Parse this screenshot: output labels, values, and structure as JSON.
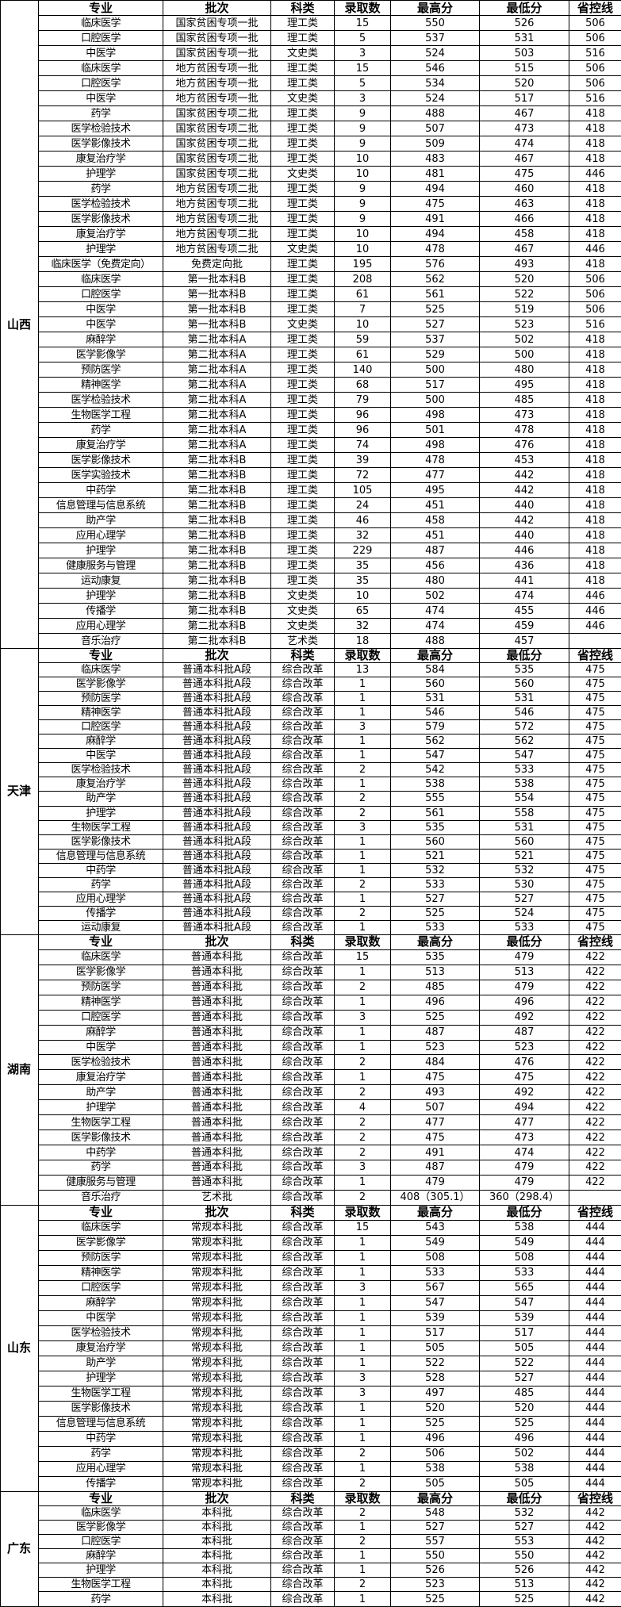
{
  "columns": [
    "专业",
    "批次",
    "科类",
    "录取数",
    "最高分",
    "最低分",
    "省控线"
  ],
  "provinces": [
    {
      "name": "山西",
      "rows": [
        [
          "临床医学",
          "国家贫困专项一批",
          "理工类",
          "15",
          "550",
          "526",
          "506"
        ],
        [
          "口腔医学",
          "国家贫困专项一批",
          "理工类",
          "5",
          "537",
          "531",
          "506"
        ],
        [
          "中医学",
          "国家贫困专项一批",
          "文史类",
          "3",
          "524",
          "503",
          "516"
        ],
        [
          "临床医学",
          "地方贫困专项一批",
          "理工类",
          "15",
          "546",
          "515",
          "506"
        ],
        [
          "口腔医学",
          "地方贫困专项一批",
          "理工类",
          "5",
          "534",
          "520",
          "506"
        ],
        [
          "中医学",
          "地方贫困专项一批",
          "文史类",
          "3",
          "524",
          "517",
          "516"
        ],
        [
          "药学",
          "国家贫困专项二批",
          "理工类",
          "9",
          "488",
          "467",
          "418"
        ],
        [
          "医学检验技术",
          "国家贫困专项二批",
          "理工类",
          "9",
          "507",
          "473",
          "418"
        ],
        [
          "医学影像技术",
          "国家贫困专项二批",
          "理工类",
          "9",
          "509",
          "474",
          "418"
        ],
        [
          "康复治疗学",
          "国家贫困专项二批",
          "理工类",
          "10",
          "483",
          "467",
          "418"
        ],
        [
          "护理学",
          "国家贫困专项二批",
          "文史类",
          "10",
          "481",
          "475",
          "446"
        ],
        [
          "药学",
          "地方贫困专项二批",
          "理工类",
          "9",
          "494",
          "460",
          "418"
        ],
        [
          "医学检验技术",
          "地方贫困专项二批",
          "理工类",
          "9",
          "475",
          "463",
          "418"
        ],
        [
          "医学影像技术",
          "地方贫困专项二批",
          "理工类",
          "9",
          "491",
          "466",
          "418"
        ],
        [
          "康复治疗学",
          "地方贫困专项二批",
          "理工类",
          "10",
          "494",
          "458",
          "418"
        ],
        [
          "护理学",
          "地方贫困专项二批",
          "文史类",
          "10",
          "478",
          "467",
          "446"
        ],
        [
          "临床医学（免费定向）",
          "免费定向批",
          "理工类",
          "195",
          "576",
          "493",
          "418"
        ],
        [
          "临床医学",
          "第一批本科B",
          "理工类",
          "208",
          "562",
          "520",
          "506"
        ],
        [
          "口腔医学",
          "第一批本科B",
          "理工类",
          "61",
          "561",
          "522",
          "506"
        ],
        [
          "中医学",
          "第一批本科B",
          "理工类",
          "7",
          "525",
          "519",
          "506"
        ],
        [
          "中医学",
          "第一批本科B",
          "文史类",
          "10",
          "527",
          "523",
          "516"
        ],
        [
          "麻醉学",
          "第二批本科A",
          "理工类",
          "59",
          "537",
          "502",
          "418"
        ],
        [
          "医学影像学",
          "第二批本科A",
          "理工类",
          "61",
          "529",
          "500",
          "418"
        ],
        [
          "预防医学",
          "第二批本科A",
          "理工类",
          "140",
          "500",
          "480",
          "418"
        ],
        [
          "精神医学",
          "第二批本科A",
          "理工类",
          "68",
          "517",
          "495",
          "418"
        ],
        [
          "医学检验技术",
          "第二批本科A",
          "理工类",
          "79",
          "500",
          "485",
          "418"
        ],
        [
          "生物医学工程",
          "第二批本科A",
          "理工类",
          "96",
          "498",
          "473",
          "418"
        ],
        [
          "药学",
          "第二批本科A",
          "理工类",
          "96",
          "501",
          "478",
          "418"
        ],
        [
          "康复治疗学",
          "第二批本科A",
          "理工类",
          "74",
          "498",
          "476",
          "418"
        ],
        [
          "医学影像技术",
          "第二批本科B",
          "理工类",
          "39",
          "478",
          "453",
          "418"
        ],
        [
          "医学实验技术",
          "第二批本科B",
          "理工类",
          "72",
          "477",
          "442",
          "418"
        ],
        [
          "中药学",
          "第二批本科B",
          "理工类",
          "105",
          "495",
          "442",
          "418"
        ],
        [
          "信息管理与信息系统",
          "第二批本科B",
          "理工类",
          "24",
          "451",
          "440",
          "418"
        ],
        [
          "助产学",
          "第二批本科B",
          "理工类",
          "46",
          "458",
          "442",
          "418"
        ],
        [
          "应用心理学",
          "第二批本科B",
          "理工类",
          "32",
          "451",
          "440",
          "418"
        ],
        [
          "护理学",
          "第二批本科B",
          "理工类",
          "229",
          "487",
          "446",
          "418"
        ],
        [
          "健康服务与管理",
          "第二批本科B",
          "理工类",
          "35",
          "456",
          "436",
          "418"
        ],
        [
          "运动康复",
          "第二批本科B",
          "理工类",
          "35",
          "480",
          "441",
          "418"
        ],
        [
          "护理学",
          "第二批本科B",
          "文史类",
          "10",
          "502",
          "474",
          "446"
        ],
        [
          "传播学",
          "第二批本科B",
          "文史类",
          "65",
          "474",
          "455",
          "446"
        ],
        [
          "应用心理学",
          "第二批本科B",
          "文史类",
          "32",
          "474",
          "459",
          "446"
        ],
        [
          "音乐治疗",
          "第二批本科B",
          "艺术类",
          "18",
          "488",
          "457",
          ""
        ]
      ]
    },
    {
      "name": "天津",
      "rows": [
        [
          "临床医学",
          "普通本科批A段",
          "综合改革",
          "13",
          "584",
          "535",
          "475"
        ],
        [
          "医学影像学",
          "普通本科批A段",
          "综合改革",
          "1",
          "560",
          "560",
          "475"
        ],
        [
          "预防医学",
          "普通本科批A段",
          "综合改革",
          "1",
          "531",
          "531",
          "475"
        ],
        [
          "精神医学",
          "普通本科批A段",
          "综合改革",
          "1",
          "546",
          "546",
          "475"
        ],
        [
          "口腔医学",
          "普通本科批A段",
          "综合改革",
          "3",
          "579",
          "572",
          "475"
        ],
        [
          "麻醉学",
          "普通本科批A段",
          "综合改革",
          "1",
          "562",
          "562",
          "475"
        ],
        [
          "中医学",
          "普通本科批A段",
          "综合改革",
          "1",
          "547",
          "547",
          "475"
        ],
        [
          "医学检验技术",
          "普通本科批A段",
          "综合改革",
          "2",
          "542",
          "533",
          "475"
        ],
        [
          "康复治疗学",
          "普通本科批A段",
          "综合改革",
          "1",
          "538",
          "538",
          "475"
        ],
        [
          "助产学",
          "普通本科批A段",
          "综合改革",
          "2",
          "555",
          "554",
          "475"
        ],
        [
          "护理学",
          "普通本科批A段",
          "综合改革",
          "2",
          "561",
          "558",
          "475"
        ],
        [
          "生物医学工程",
          "普通本科批A段",
          "综合改革",
          "3",
          "535",
          "531",
          "475"
        ],
        [
          "医学影像技术",
          "普通本科批A段",
          "综合改革",
          "1",
          "560",
          "560",
          "475"
        ],
        [
          "信息管理与信息系统",
          "普通本科批A段",
          "综合改革",
          "1",
          "521",
          "521",
          "475"
        ],
        [
          "中药学",
          "普通本科批A段",
          "综合改革",
          "1",
          "532",
          "532",
          "475"
        ],
        [
          "药学",
          "普通本科批A段",
          "综合改革",
          "2",
          "533",
          "530",
          "475"
        ],
        [
          "应用心理学",
          "普通本科批A段",
          "综合改革",
          "1",
          "527",
          "527",
          "475"
        ],
        [
          "传播学",
          "普通本科批A段",
          "综合改革",
          "2",
          "525",
          "524",
          "475"
        ],
        [
          "运动康复",
          "普通本科批A段",
          "综合改革",
          "1",
          "533",
          "533",
          "475"
        ]
      ]
    },
    {
      "name": "湖南",
      "rows": [
        [
          "临床医学",
          "普通本科批",
          "综合改革",
          "15",
          "535",
          "479",
          "422"
        ],
        [
          "医学影像学",
          "普通本科批",
          "综合改革",
          "1",
          "513",
          "513",
          "422"
        ],
        [
          "预防医学",
          "普通本科批",
          "综合改革",
          "2",
          "485",
          "479",
          "422"
        ],
        [
          "精神医学",
          "普通本科批",
          "综合改革",
          "1",
          "496",
          "496",
          "422"
        ],
        [
          "口腔医学",
          "普通本科批",
          "综合改革",
          "3",
          "525",
          "492",
          "422"
        ],
        [
          "麻醉学",
          "普通本科批",
          "综合改革",
          "1",
          "487",
          "487",
          "422"
        ],
        [
          "中医学",
          "普通本科批",
          "综合改革",
          "1",
          "523",
          "523",
          "422"
        ],
        [
          "医学检验技术",
          "普通本科批",
          "综合改革",
          "2",
          "484",
          "476",
          "422"
        ],
        [
          "康复治疗学",
          "普通本科批",
          "综合改革",
          "1",
          "475",
          "475",
          "422"
        ],
        [
          "助产学",
          "普通本科批",
          "综合改革",
          "2",
          "493",
          "492",
          "422"
        ],
        [
          "护理学",
          "普通本科批",
          "综合改革",
          "4",
          "507",
          "494",
          "422"
        ],
        [
          "生物医学工程",
          "普通本科批",
          "综合改革",
          "2",
          "477",
          "477",
          "422"
        ],
        [
          "医学影像技术",
          "普通本科批",
          "综合改革",
          "2",
          "475",
          "473",
          "422"
        ],
        [
          "中药学",
          "普通本科批",
          "综合改革",
          "2",
          "491",
          "474",
          "422"
        ],
        [
          "药学",
          "普通本科批",
          "综合改革",
          "3",
          "487",
          "479",
          "422"
        ],
        [
          "健康服务与管理",
          "普通本科批",
          "综合改革",
          "1",
          "479",
          "479",
          "422"
        ],
        [
          "音乐治疗",
          "艺术批",
          "综合改革",
          "2",
          "408（305.1）",
          "360（298.4）",
          ""
        ]
      ]
    },
    {
      "name": "山东",
      "rows": [
        [
          "临床医学",
          "常规本科批",
          "综合改革",
          "15",
          "543",
          "538",
          "444"
        ],
        [
          "医学影像学",
          "常规本科批",
          "综合改革",
          "1",
          "549",
          "549",
          "444"
        ],
        [
          "预防医学",
          "常规本科批",
          "综合改革",
          "1",
          "508",
          "508",
          "444"
        ],
        [
          "精神医学",
          "常规本科批",
          "综合改革",
          "1",
          "533",
          "533",
          "444"
        ],
        [
          "口腔医学",
          "常规本科批",
          "综合改革",
          "3",
          "567",
          "565",
          "444"
        ],
        [
          "麻醉学",
          "常规本科批",
          "综合改革",
          "1",
          "547",
          "547",
          "444"
        ],
        [
          "中医学",
          "常规本科批",
          "综合改革",
          "1",
          "539",
          "539",
          "444"
        ],
        [
          "医学检验技术",
          "常规本科批",
          "综合改革",
          "1",
          "517",
          "517",
          "444"
        ],
        [
          "康复治疗学",
          "常规本科批",
          "综合改革",
          "1",
          "505",
          "505",
          "444"
        ],
        [
          "助产学",
          "常规本科批",
          "综合改革",
          "1",
          "522",
          "522",
          "444"
        ],
        [
          "护理学",
          "常规本科批",
          "综合改革",
          "3",
          "528",
          "527",
          "444"
        ],
        [
          "生物医学工程",
          "常规本科批",
          "综合改革",
          "3",
          "497",
          "485",
          "444"
        ],
        [
          "医学影像技术",
          "常规本科批",
          "综合改革",
          "1",
          "520",
          "520",
          "444"
        ],
        [
          "信息管理与信息系统",
          "常规本科批",
          "综合改革",
          "1",
          "525",
          "525",
          "444"
        ],
        [
          "中药学",
          "常规本科批",
          "综合改革",
          "1",
          "496",
          "496",
          "444"
        ],
        [
          "药学",
          "常规本科批",
          "综合改革",
          "2",
          "506",
          "502",
          "444"
        ],
        [
          "应用心理学",
          "常规本科批",
          "综合改革",
          "1",
          "538",
          "538",
          "444"
        ],
        [
          "传播学",
          "常规本科批",
          "综合改革",
          "2",
          "505",
          "505",
          "444"
        ]
      ]
    },
    {
      "name": "广东",
      "rows": [
        [
          "临床医学",
          "本科批",
          "综合改革",
          "2",
          "548",
          "532",
          "442"
        ],
        [
          "医学影像学",
          "本科批",
          "综合改革",
          "1",
          "527",
          "527",
          "442"
        ],
        [
          "口腔医学",
          "本科批",
          "综合改革",
          "2",
          "557",
          "553",
          "442"
        ],
        [
          "麻醉学",
          "本科批",
          "综合改革",
          "1",
          "550",
          "550",
          "442"
        ],
        [
          "护理学",
          "本科批",
          "综合改革",
          "1",
          "526",
          "526",
          "442"
        ],
        [
          "生物医学工程",
          "本科批",
          "综合改革",
          "2",
          "523",
          "513",
          "442"
        ],
        [
          "药学",
          "本科批",
          "综合改革",
          "1",
          "525",
          "525",
          "442"
        ]
      ]
    }
  ]
}
